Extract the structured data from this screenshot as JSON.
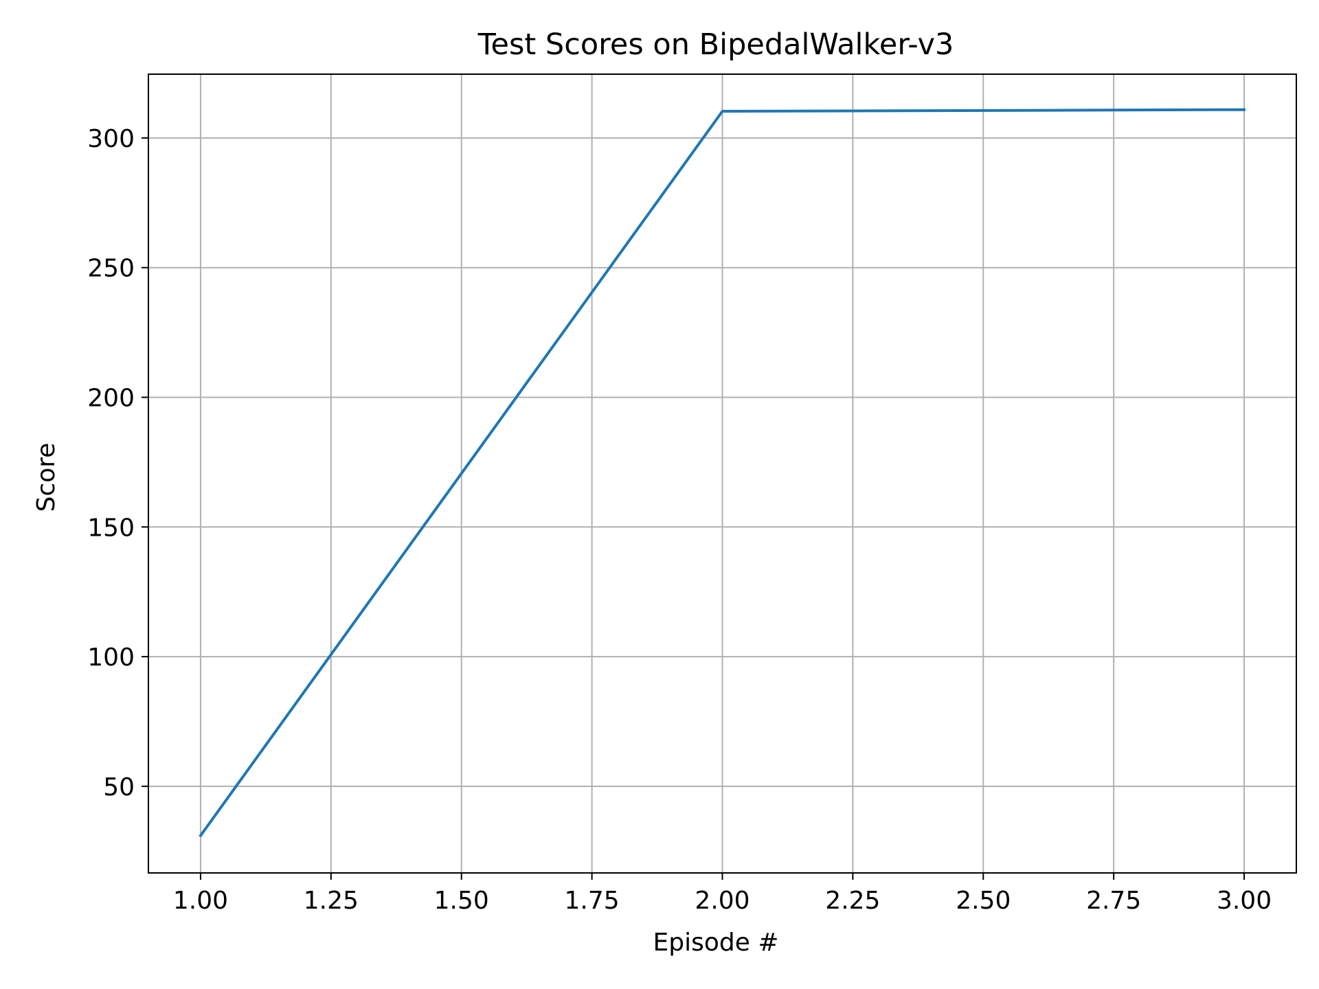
{
  "chart_data": {
    "type": "line",
    "title": "Test Scores on BipedalWalker-v3",
    "xlabel": "Episode #",
    "ylabel": "Score",
    "x": [
      1,
      2,
      3
    ],
    "series": [
      {
        "values": [
          31,
          310.3,
          310.9
        ]
      }
    ],
    "xlim": [
      0.9,
      3.1
    ],
    "ylim": [
      16.6,
      324.6
    ],
    "xticks": [
      1.0,
      1.25,
      1.5,
      1.75,
      2.0,
      2.25,
      2.5,
      2.75,
      3.0
    ],
    "xtick_labels": [
      "1.00",
      "1.25",
      "1.50",
      "1.75",
      "2.00",
      "2.25",
      "2.50",
      "2.75",
      "3.00"
    ],
    "yticks": [
      50,
      100,
      150,
      200,
      250,
      300
    ],
    "ytick_labels": [
      "50",
      "100",
      "150",
      "200",
      "250",
      "300"
    ],
    "grid": true,
    "colors": {
      "line": "#1f77b4",
      "grid": "#b0b0b0",
      "axes": "#000000"
    }
  }
}
